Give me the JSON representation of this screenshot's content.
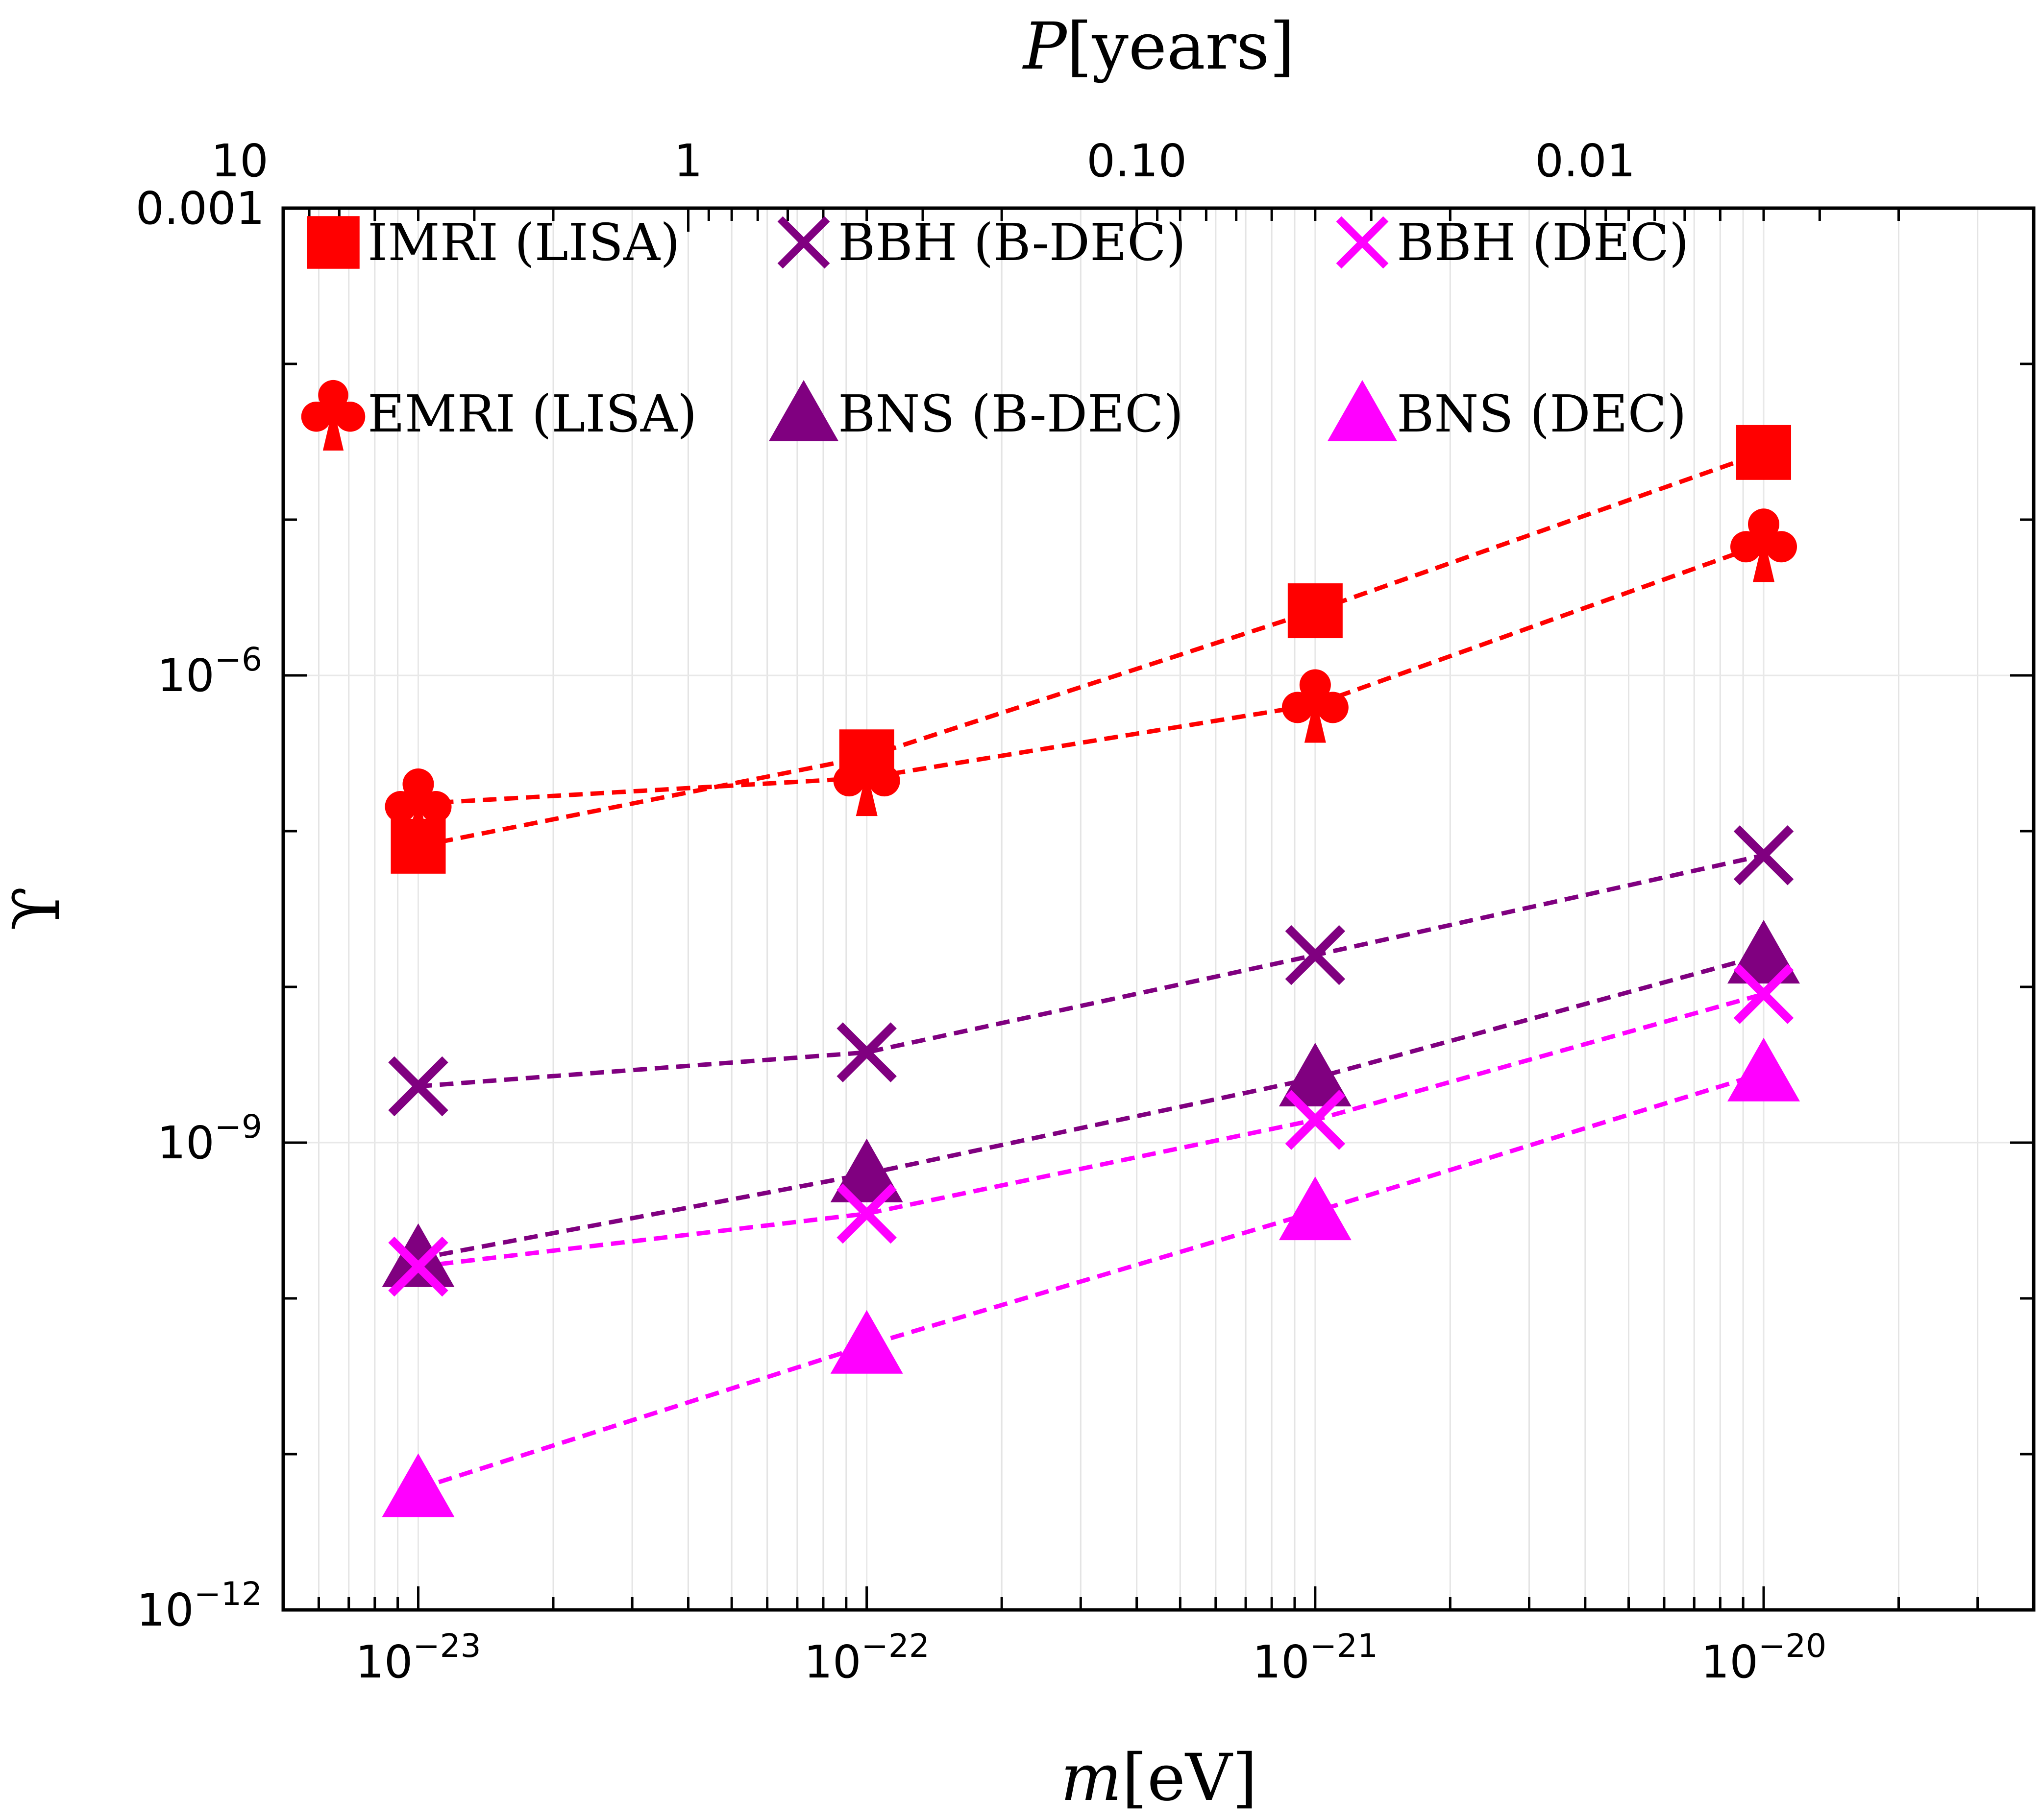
{
  "chart_data": {
    "type": "scatter",
    "title": "",
    "xlabel": "m[eV]",
    "x2label": "P[years]",
    "ylabel": "ϒ",
    "xscale": "log",
    "yscale": "log",
    "xlim": [
      5e-24,
      4e-20
    ],
    "ylim": [
      1e-12,
      0.001
    ],
    "x_ticks": [
      {
        "value": 1e-23,
        "base": "10",
        "exp": "−23"
      },
      {
        "value": 1e-22,
        "base": "10",
        "exp": "−22"
      },
      {
        "value": 1e-21,
        "base": "10",
        "exp": "−21"
      },
      {
        "value": 1e-20,
        "base": "10",
        "exp": "−20"
      }
    ],
    "y_ticks": [
      {
        "value": 1e-12,
        "text": "",
        "base": "10",
        "exp": "−12"
      },
      {
        "value": 1e-09,
        "text": "",
        "base": "10",
        "exp": "−9"
      },
      {
        "value": 1e-06,
        "text": "",
        "base": "10",
        "exp": "−6"
      },
      {
        "value": 0.001,
        "text": "0.001",
        "base": "",
        "exp": ""
      }
    ],
    "x2_ticks": [
      {
        "label": "10",
        "m": 4e-24
      },
      {
        "label": "1",
        "m": 4e-23
      },
      {
        "label": "0.10",
        "m": 4e-22
      },
      {
        "label": "0.01",
        "m": 4e-21
      }
    ],
    "x": [
      1e-23,
      1e-22,
      1e-21,
      1e-20
    ],
    "series": [
      {
        "name": "IMRI (LISA)",
        "marker": "square",
        "color": "#ff0000",
        "values": [
          8e-08,
          3e-07,
          2.6e-06,
          2.7e-05
        ]
      },
      {
        "name": "EMRI (LISA)",
        "marker": "club",
        "color": "#ff0000",
        "values": [
          1.5e-07,
          2.2e-07,
          6.5e-07,
          7e-06
        ]
      },
      {
        "name": "BBH (B-DEC)",
        "marker": "cross",
        "color": "#800080",
        "values": [
          2.3e-09,
          3.8e-09,
          1.6e-08,
          7e-08
        ]
      },
      {
        "name": "BNS (B-DEC)",
        "marker": "triangle",
        "color": "#800080",
        "values": [
          1.8e-10,
          6.3e-10,
          2.6e-09,
          1.6e-08
        ]
      },
      {
        "name": "BBH (DEC)",
        "marker": "cross",
        "color": "#ff00ff",
        "values": [
          1.6e-10,
          3.5e-10,
          1.4e-09,
          9e-09
        ]
      },
      {
        "name": "BNS (DEC)",
        "marker": "triangle",
        "color": "#ff00ff",
        "values": [
          6e-12,
          5e-11,
          3.6e-10,
          2.8e-09
        ]
      }
    ],
    "legend": {
      "placement": "top-left",
      "columns": 3
    }
  }
}
